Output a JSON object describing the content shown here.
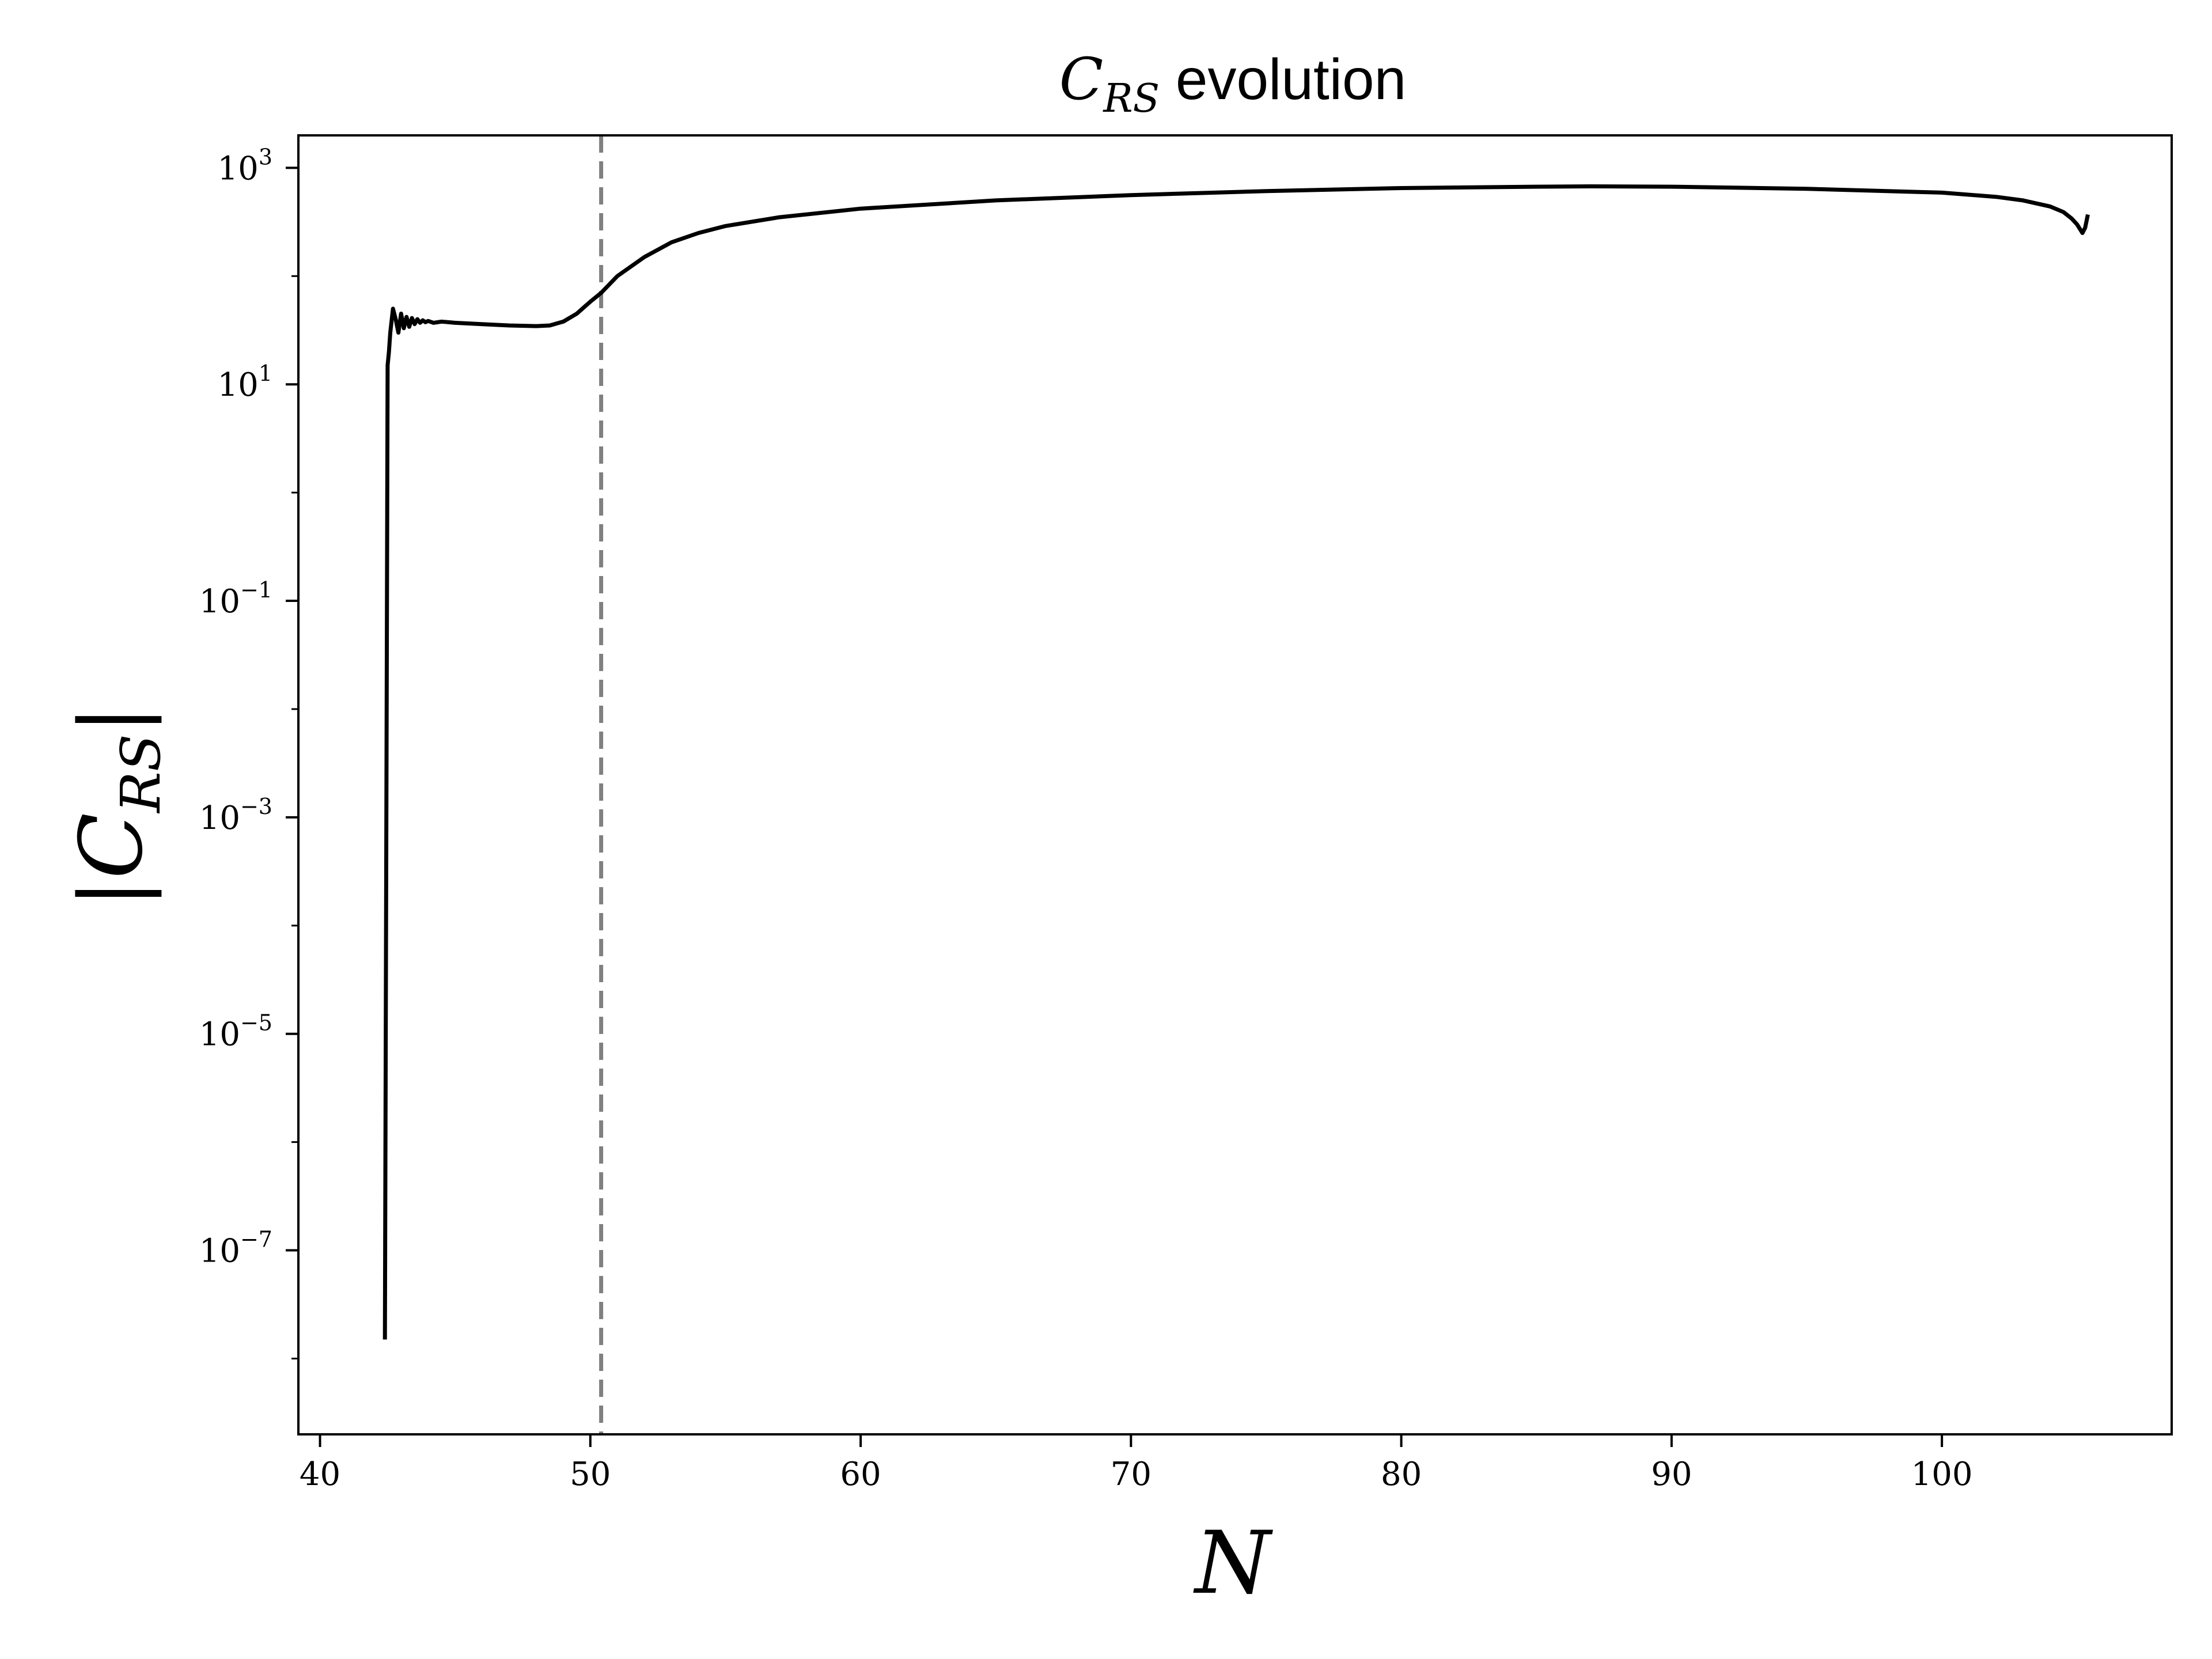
{
  "chart_data": {
    "type": "line",
    "title": {
      "main": "C",
      "sub": "RS",
      "rest": " evolution"
    },
    "xlabel": "N",
    "ylabel": {
      "main": "|C",
      "sub": "RS",
      "end": "|"
    },
    "xlim": [
      39.2,
      108.5
    ],
    "ylim_log10": [
      -8.7,
      3.3
    ],
    "y_scale": "log",
    "grid": false,
    "legend": "none",
    "x_ticks": [
      40,
      50,
      60,
      70,
      80,
      90,
      100
    ],
    "x_tick_labels": [
      "40",
      "50",
      "60",
      "70",
      "80",
      "90",
      "100"
    ],
    "y_ticks": [
      {
        "log10": 3,
        "base": "10",
        "exp": "3"
      },
      {
        "log10": 1,
        "base": "10",
        "exp": "1"
      },
      {
        "log10": -1,
        "base": "10",
        "exp": "−1"
      },
      {
        "log10": -3,
        "base": "10",
        "exp": "−3"
      },
      {
        "log10": -5,
        "base": "10",
        "exp": "−5"
      },
      {
        "log10": -7,
        "base": "10",
        "exp": "−7"
      }
    ],
    "vline": {
      "x": 50.4,
      "color": "#808080",
      "style": "dashed"
    },
    "series": [
      {
        "color": "#000000",
        "x": [
          42.4,
          42.5,
          42.55,
          42.6,
          42.7,
          42.8,
          42.9,
          43.0,
          43.1,
          43.2,
          43.3,
          43.4,
          43.5,
          43.6,
          43.7,
          43.8,
          43.9,
          44.0,
          44.2,
          44.5,
          45,
          46,
          47,
          48,
          48.5,
          49,
          49.5,
          50,
          50.4,
          51,
          52,
          53,
          54,
          55,
          57,
          60,
          65,
          70,
          75,
          80,
          85,
          87,
          90,
          95,
          100,
          102,
          103,
          104,
          104.5,
          104.8,
          105.0,
          105.2,
          105.3,
          105.4
        ],
        "y": [
          1.5e-08,
          15,
          20,
          30,
          50,
          40,
          30,
          45,
          33,
          42,
          34,
          41,
          36,
          40,
          37,
          39,
          37.5,
          38.5,
          37,
          38,
          37,
          36,
          35,
          34.5,
          35,
          38,
          45,
          58,
          70,
          100,
          150,
          205,
          250,
          290,
          350,
          420,
          500,
          560,
          610,
          650,
          670,
          675,
          670,
          640,
          590,
          540,
          500,
          440,
          390,
          340,
          300,
          250,
          280,
          370
        ]
      }
    ]
  }
}
